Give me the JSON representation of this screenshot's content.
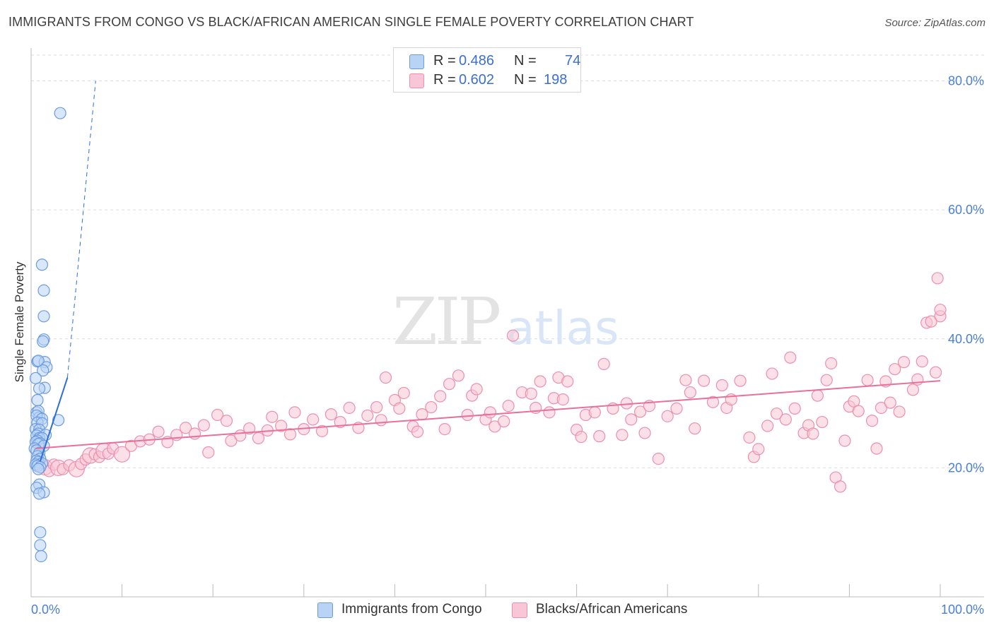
{
  "title": "IMMIGRANTS FROM CONGO VS BLACK/AFRICAN AMERICAN SINGLE FEMALE POVERTY CORRELATION CHART",
  "source": "Source: ZipAtlas.com",
  "watermark": {
    "zip": "ZIP",
    "atlas": "atlas"
  },
  "legend": {
    "r_label": "R =",
    "n_label": "N =",
    "series": [
      {
        "name": "Immigrants from Congo",
        "r": "0.486",
        "n": "74"
      },
      {
        "name": "Blacks/African Americans",
        "r": "0.602",
        "n": "198"
      }
    ]
  },
  "colors": {
    "blue_fill": "#b9d3f5",
    "blue_stroke": "#6b9be0",
    "blue_line": "#2b6fd6",
    "pink_fill": "#f8c6d6",
    "pink_stroke": "#ec8fb0",
    "pink_line": "#e8709a",
    "axis_label": "#4a7fd4",
    "grid": "#dcdcdc"
  },
  "chart_data": {
    "type": "scatter",
    "title": "IMMIGRANTS FROM CONGO VS BLACK/AFRICAN AMERICAN SINGLE FEMALE POVERTY CORRELATION CHART",
    "xlabel": "",
    "ylabel": "Single Female Poverty",
    "xlim": [
      0,
      100
    ],
    "ylim": [
      0,
      84
    ],
    "x_tick_labels": [
      "0.0%",
      "100.0%"
    ],
    "y_ticks": [
      20,
      40,
      60,
      80
    ],
    "y_tick_labels": [
      "20.0%",
      "40.0%",
      "60.0%",
      "80.0%"
    ],
    "grid": true,
    "legend_position": "top-center",
    "series": [
      {
        "name": "Immigrants from Congo",
        "color": "blue",
        "trend": {
          "solid": [
            [
              1.0,
              21.0
            ],
            [
              4.0,
              34.0
            ]
          ],
          "dashed": [
            [
              4.0,
              34.0
            ],
            [
              7.1,
              80.0
            ]
          ]
        },
        "points": [
          [
            3.2,
            75.0
          ],
          [
            1.2,
            51.5
          ],
          [
            1.4,
            47.5
          ],
          [
            1.4,
            43.5
          ],
          [
            1.4,
            39.9
          ],
          [
            1.3,
            39.6
          ],
          [
            0.7,
            36.5
          ],
          [
            1.5,
            36.4
          ],
          [
            0.8,
            36.6
          ],
          [
            1.7,
            35.6
          ],
          [
            1.3,
            35.1
          ],
          [
            0.5,
            33.9
          ],
          [
            1.5,
            32.4
          ],
          [
            0.9,
            32.3
          ],
          [
            0.7,
            30.5
          ],
          [
            0.6,
            28.6
          ],
          [
            0.8,
            28.8
          ],
          [
            0.9,
            27.8
          ],
          [
            0.6,
            28.1
          ],
          [
            1.2,
            27.6
          ],
          [
            3.0,
            27.4
          ],
          [
            0.7,
            27.0
          ],
          [
            1.2,
            26.9
          ],
          [
            0.5,
            26.0
          ],
          [
            0.9,
            25.9
          ],
          [
            0.8,
            25.3
          ],
          [
            1.6,
            25.1
          ],
          [
            0.6,
            25.0
          ],
          [
            0.9,
            24.6
          ],
          [
            1.2,
            24.6
          ],
          [
            0.7,
            24.2
          ],
          [
            0.5,
            24.0
          ],
          [
            1.0,
            23.8
          ],
          [
            0.8,
            23.7
          ],
          [
            1.4,
            23.4
          ],
          [
            0.4,
            23.0
          ],
          [
            0.6,
            22.7
          ],
          [
            0.9,
            22.3
          ],
          [
            0.7,
            21.8
          ],
          [
            1.0,
            21.4
          ],
          [
            0.6,
            21.1
          ],
          [
            0.8,
            20.9
          ],
          [
            1.2,
            20.7
          ],
          [
            0.5,
            20.5
          ],
          [
            0.7,
            20.3
          ],
          [
            1.0,
            20.1
          ],
          [
            0.8,
            19.8
          ],
          [
            0.9,
            17.4
          ],
          [
            0.6,
            16.9
          ],
          [
            1.4,
            16.2
          ],
          [
            0.9,
            16.0
          ],
          [
            1.0,
            10.0
          ],
          [
            1.0,
            8.0
          ],
          [
            1.1,
            6.3
          ]
        ]
      },
      {
        "name": "Blacks/African Americans",
        "color": "pink",
        "trend": {
          "solid": [
            [
              0.5,
              23.0
            ],
            [
              100.0,
              33.5
            ]
          ]
        },
        "points": [
          [
            1.5,
            20.1
          ],
          [
            2.0,
            19.5
          ],
          [
            2.5,
            20.5
          ],
          [
            3.0,
            20.0
          ],
          [
            3.5,
            19.8
          ],
          [
            4.2,
            20.4
          ],
          [
            5.0,
            19.8
          ],
          [
            5.5,
            20.6
          ],
          [
            6.0,
            21.3
          ],
          [
            6.5,
            21.9
          ],
          [
            7.0,
            22.1
          ],
          [
            7.5,
            21.7
          ],
          [
            8.0,
            22.6
          ],
          [
            8.5,
            22.2
          ],
          [
            9.0,
            23.0
          ],
          [
            10.0,
            22.1
          ],
          [
            11.0,
            23.4
          ],
          [
            12.0,
            24.1
          ],
          [
            13.0,
            24.4
          ],
          [
            14.0,
            25.6
          ],
          [
            15.0,
            24.0
          ],
          [
            16.0,
            25.1
          ],
          [
            17.0,
            26.2
          ],
          [
            18.0,
            25.3
          ],
          [
            19.0,
            26.6
          ],
          [
            19.5,
            22.4
          ],
          [
            20.5,
            28.2
          ],
          [
            21.5,
            27.3
          ],
          [
            22.0,
            24.2
          ],
          [
            23.0,
            25.0
          ],
          [
            24.0,
            26.1
          ],
          [
            25.0,
            24.6
          ],
          [
            26.0,
            25.8
          ],
          [
            26.5,
            27.9
          ],
          [
            27.5,
            26.5
          ],
          [
            28.5,
            25.2
          ],
          [
            29.0,
            28.6
          ],
          [
            30.0,
            26.0
          ],
          [
            31.0,
            27.5
          ],
          [
            32.0,
            25.7
          ],
          [
            33.0,
            28.3
          ],
          [
            34.0,
            27.1
          ],
          [
            35.0,
            29.3
          ],
          [
            36.0,
            26.2
          ],
          [
            37.0,
            28.1
          ],
          [
            38.0,
            29.4
          ],
          [
            38.5,
            27.4
          ],
          [
            39.0,
            34.0
          ],
          [
            40.0,
            30.5
          ],
          [
            40.5,
            29.2
          ],
          [
            41.0,
            31.6
          ],
          [
            42.0,
            26.4
          ],
          [
            42.5,
            25.6
          ],
          [
            43.0,
            28.3
          ],
          [
            44.0,
            29.4
          ],
          [
            45.0,
            31.1
          ],
          [
            45.5,
            26.0
          ],
          [
            46.0,
            33.0
          ],
          [
            47.0,
            34.3
          ],
          [
            48.0,
            28.2
          ],
          [
            48.5,
            31.2
          ],
          [
            49.0,
            32.2
          ],
          [
            50.0,
            27.5
          ],
          [
            50.5,
            28.6
          ],
          [
            51.0,
            26.4
          ],
          [
            52.0,
            27.2
          ],
          [
            52.5,
            29.6
          ],
          [
            53.0,
            40.5
          ],
          [
            54.0,
            31.7
          ],
          [
            55.0,
            31.5
          ],
          [
            55.5,
            29.3
          ],
          [
            56.0,
            33.4
          ],
          [
            57.0,
            28.6
          ],
          [
            57.5,
            30.8
          ],
          [
            58.0,
            34.0
          ],
          [
            58.5,
            30.6
          ],
          [
            59.0,
            33.4
          ],
          [
            60.0,
            25.9
          ],
          [
            60.5,
            24.8
          ],
          [
            61.0,
            28.2
          ],
          [
            62.0,
            28.6
          ],
          [
            62.5,
            24.9
          ],
          [
            63.0,
            36.1
          ],
          [
            64.0,
            29.2
          ],
          [
            65.0,
            25.1
          ],
          [
            65.5,
            30.0
          ],
          [
            66.0,
            27.5
          ],
          [
            67.0,
            28.7
          ],
          [
            67.5,
            25.4
          ],
          [
            68.0,
            29.6
          ],
          [
            69.0,
            21.4
          ],
          [
            70.0,
            28.0
          ],
          [
            71.0,
            29.2
          ],
          [
            72.0,
            33.6
          ],
          [
            72.5,
            31.7
          ],
          [
            73.0,
            26.1
          ],
          [
            74.0,
            33.5
          ],
          [
            75.0,
            30.2
          ],
          [
            76.0,
            32.8
          ],
          [
            76.5,
            29.3
          ],
          [
            77.0,
            30.6
          ],
          [
            78.0,
            33.5
          ],
          [
            79.0,
            24.7
          ],
          [
            79.5,
            21.7
          ],
          [
            80.0,
            22.9
          ],
          [
            81.0,
            26.5
          ],
          [
            81.5,
            34.6
          ],
          [
            82.0,
            28.4
          ],
          [
            83.0,
            27.5
          ],
          [
            83.5,
            37.1
          ],
          [
            84.0,
            29.2
          ],
          [
            85.0,
            25.4
          ],
          [
            85.5,
            26.6
          ],
          [
            86.0,
            25.3
          ],
          [
            86.5,
            31.2
          ],
          [
            87.0,
            27.1
          ],
          [
            87.5,
            33.6
          ],
          [
            88.0,
            36.2
          ],
          [
            88.5,
            18.5
          ],
          [
            89.0,
            17.1
          ],
          [
            89.5,
            24.2
          ],
          [
            90.0,
            29.5
          ],
          [
            90.5,
            30.3
          ],
          [
            91.0,
            28.8
          ],
          [
            92.0,
            33.6
          ],
          [
            92.5,
            27.3
          ],
          [
            93.0,
            23.0
          ],
          [
            93.5,
            29.3
          ],
          [
            94.0,
            33.4
          ],
          [
            94.5,
            30.1
          ],
          [
            95.0,
            35.3
          ],
          [
            95.5,
            28.7
          ],
          [
            96.0,
            36.4
          ],
          [
            97.0,
            32.1
          ],
          [
            97.5,
            33.7
          ],
          [
            98.0,
            36.5
          ],
          [
            98.5,
            42.5
          ],
          [
            99.0,
            42.7
          ],
          [
            99.5,
            34.8
          ],
          [
            99.7,
            49.4
          ],
          [
            100.0,
            43.5
          ],
          [
            100.0,
            44.5
          ]
        ]
      }
    ]
  }
}
